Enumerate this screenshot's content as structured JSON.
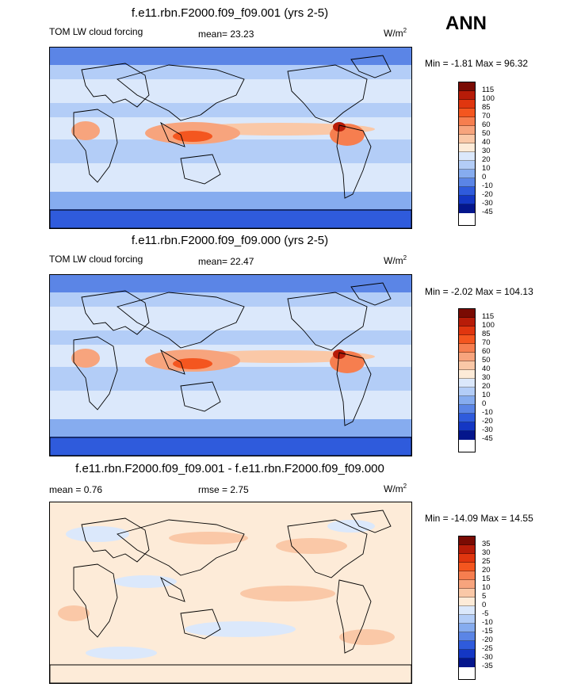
{
  "season": "ANN",
  "panels": [
    {
      "title": "f.e11.rbn.F2000.f09_f09.001 (yrs 2-5)",
      "left_label": "TOM LW cloud forcing",
      "center_label": "mean=  23.23",
      "units": "W/m",
      "units_exp": "2",
      "minmax": "Min =  -1.81 Max =  96.32",
      "legend": [
        "115",
        "100",
        "85",
        "70",
        "60",
        "50",
        "40",
        "30",
        "20",
        "10",
        "0",
        "-10",
        "-20",
        "-30",
        "-45"
      ],
      "colors": [
        "#7a0b03",
        "#b71c08",
        "#e0360f",
        "#f4561f",
        "#f67e4f",
        "#f7a47d",
        "#fac8a7",
        "#fdebd8",
        "#dbe8fb",
        "#b3cdf7",
        "#86acef",
        "#5b85e6",
        "#2f5bdc",
        "#1437c4",
        "#04168c"
      ]
    },
    {
      "title": "f.e11.rbn.F2000.f09_f09.000 (yrs 2-5)",
      "left_label": "TOM LW cloud forcing",
      "center_label": "mean=  22.47",
      "units": "W/m",
      "units_exp": "2",
      "minmax": "Min =  -2.02 Max =  104.13",
      "legend": [
        "115",
        "100",
        "85",
        "70",
        "60",
        "50",
        "40",
        "30",
        "20",
        "10",
        "0",
        "-10",
        "-20",
        "-30",
        "-45"
      ],
      "colors": [
        "#7a0b03",
        "#b71c08",
        "#e0360f",
        "#f4561f",
        "#f67e4f",
        "#f7a47d",
        "#fac8a7",
        "#fdebd8",
        "#dbe8fb",
        "#b3cdf7",
        "#86acef",
        "#5b85e6",
        "#2f5bdc",
        "#1437c4",
        "#04168c"
      ]
    },
    {
      "title": "f.e11.rbn.F2000.f09_f09.001 - f.e11.rbn.F2000.f09_f09.000",
      "left_label": "mean =   0.76",
      "center_label": "rmse =   2.75",
      "units": "W/m",
      "units_exp": "2",
      "minmax": "Min = -14.09 Max =  14.55",
      "legend": [
        "35",
        "30",
        "25",
        "20",
        "15",
        "10",
        "5",
        "0",
        "-5",
        "-10",
        "-15",
        "-20",
        "-25",
        "-30",
        "-35"
      ],
      "colors": [
        "#7a0b03",
        "#b71c08",
        "#e0360f",
        "#f4561f",
        "#f67e4f",
        "#f7a47d",
        "#fac8a7",
        "#fdebd8",
        "#dbe8fb",
        "#b3cdf7",
        "#86acef",
        "#5b85e6",
        "#2f5bdc",
        "#1437c4",
        "#04168c"
      ]
    }
  ]
}
